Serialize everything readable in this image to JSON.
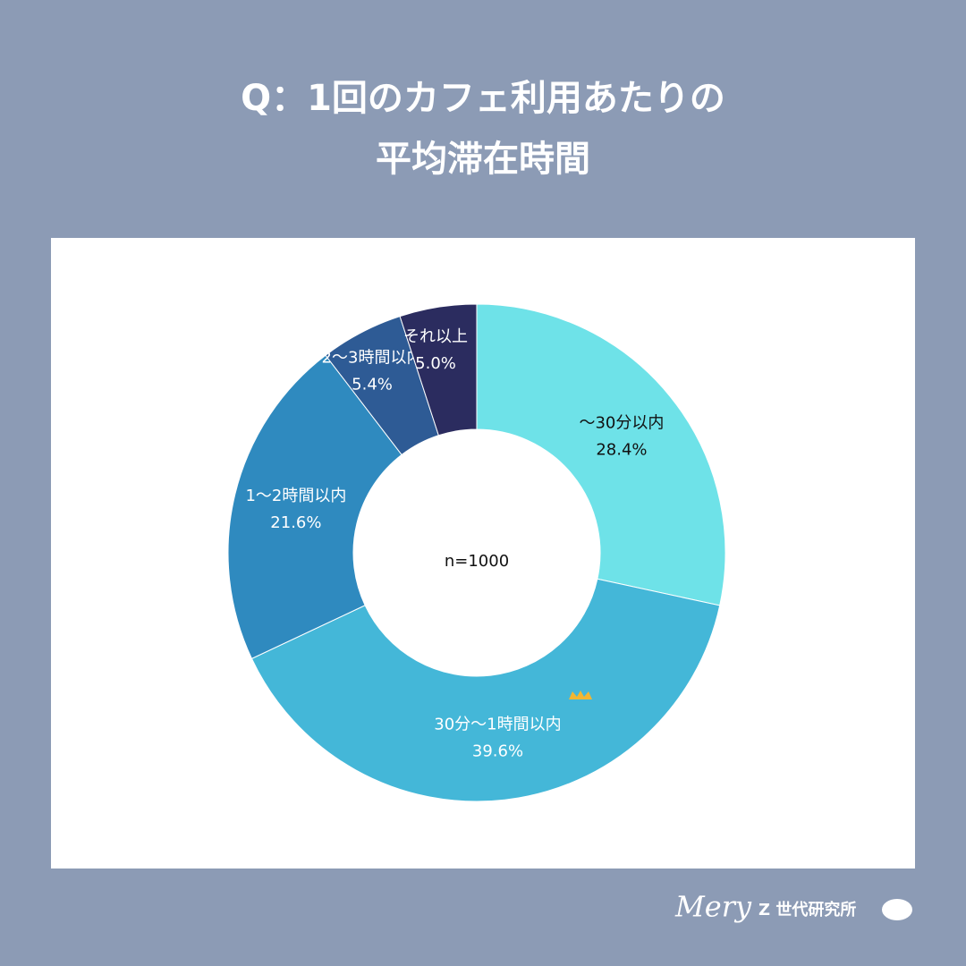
{
  "chart_data": {
    "type": "donut",
    "title": [
      "Q：1回のカフェ利用あたりの",
      "平均滞在時間"
    ],
    "center_label": "n=1000",
    "categories": [
      "〜30分以内",
      "30分〜1時間以内",
      "1〜2時間以内",
      "2〜3時間以内",
      "それ以上"
    ],
    "values": [
      28.4,
      39.6,
      21.6,
      5.4,
      5.0
    ],
    "value_labels": [
      "28.4%",
      "39.6%",
      "21.6%",
      "5.4%",
      "5.0%"
    ],
    "colors": [
      "#6ee2e8",
      "#44b7d8",
      "#2f8abf",
      "#2e5b95",
      "#2b2c5f"
    ],
    "label_colors": [
      "#111111",
      "#ffffff",
      "#ffffff",
      "#ffffff",
      "#ffffff"
    ]
  },
  "footer": {
    "brand": "Mery",
    "text": "Z 世代研究所"
  }
}
